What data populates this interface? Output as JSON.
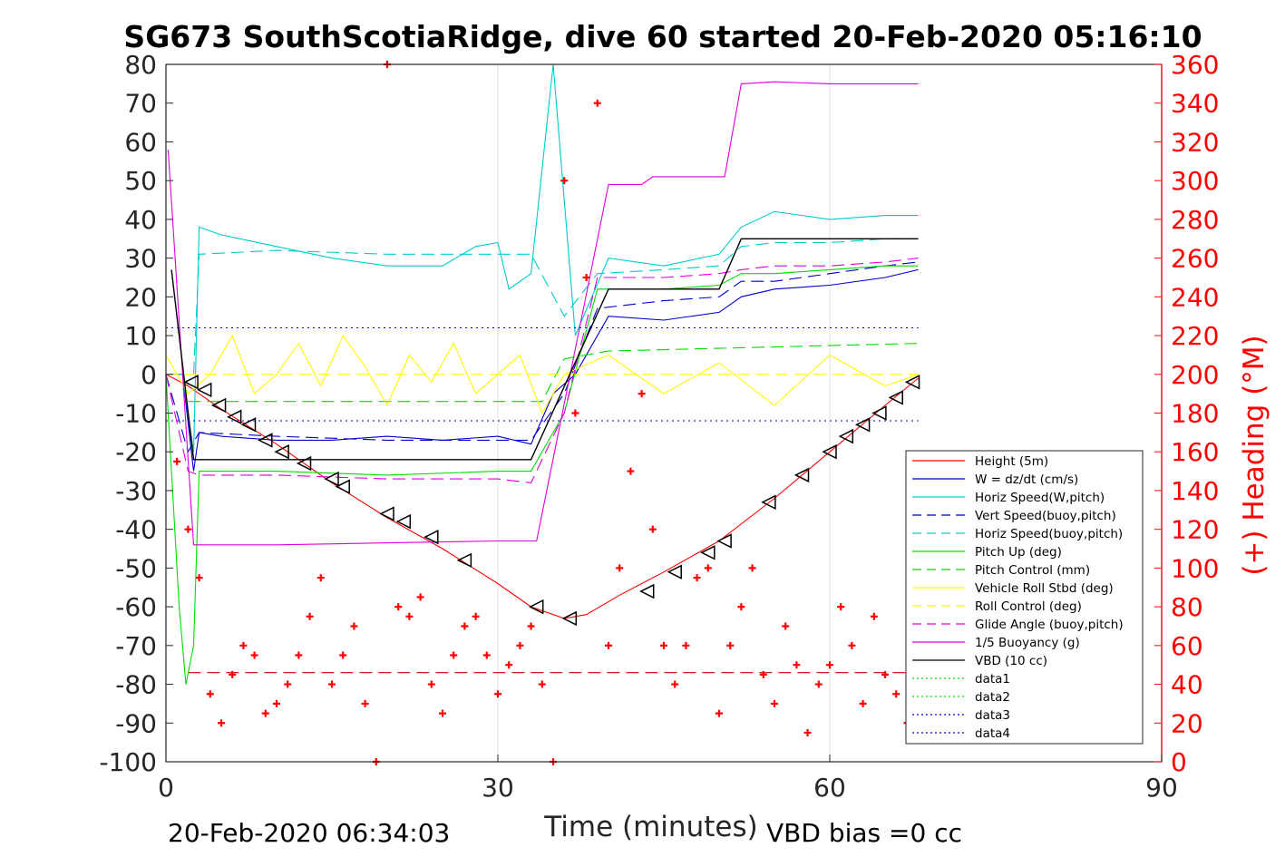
{
  "chart_data": {
    "type": "line",
    "title": "SG673 SouthScotiaRidge, dive 60 started 20-Feb-2020 05:16:10",
    "xlabel": "Time (minutes)",
    "ylabel_right": "(+) Heading (°M)",
    "xlim": [
      0,
      90
    ],
    "ylim": [
      -100,
      80
    ],
    "ylim_right": [
      0,
      360
    ],
    "xticks": [
      "0",
      "30",
      "60",
      "90"
    ],
    "yticks": [
      "80",
      "70",
      "60",
      "50",
      "40",
      "30",
      "20",
      "10",
      "0",
      "-10",
      "-20",
      "-30",
      "-40",
      "-50",
      "-60",
      "-70",
      "-80",
      "-90",
      "-100"
    ],
    "yticks_right": [
      "360",
      "340",
      "320",
      "300",
      "280",
      "260",
      "240",
      "220",
      "200",
      "180",
      "160",
      "140",
      "120",
      "100",
      "80",
      "60",
      "40",
      "20",
      "0"
    ],
    "footer_left": "20-Feb-2020 06:34:03",
    "footer_right": "VBD bias =0 cc",
    "legend_position": "lower-right",
    "grid": "vertical lines at 30 and 60",
    "series": [
      {
        "name": "Height (5m)",
        "color": "#ff0000",
        "style": "solid",
        "x": [
          0,
          2,
          5,
          10,
          15,
          20,
          25,
          30,
          33,
          36,
          38,
          41,
          45,
          50,
          55,
          60,
          65,
          68
        ],
        "y": [
          0,
          -3,
          -9,
          -18,
          -28,
          -37,
          -45,
          -54,
          -60,
          -63,
          -62,
          -57,
          -51,
          -43,
          -32,
          -20,
          -8,
          -1
        ]
      },
      {
        "name": "W = dz/dt (cm/s)",
        "color": "#0000cc",
        "style": "solid",
        "x": [
          0,
          1.5,
          2.5,
          3,
          5,
          10,
          15,
          20,
          25,
          30,
          33,
          35,
          37,
          40,
          45,
          50,
          52,
          55,
          60,
          65,
          68
        ],
        "y": [
          0,
          0,
          -25,
          -15,
          -16,
          -17,
          -17,
          -16,
          -17,
          -16,
          -18,
          -5,
          0,
          15,
          14,
          16,
          20,
          22,
          23,
          25,
          27
        ]
      },
      {
        "name": "Horiz Speed(W,pitch)",
        "color": "#00cccc",
        "style": "solid",
        "x": [
          0,
          1.5,
          2.5,
          3,
          5,
          10,
          15,
          20,
          25,
          28,
          30,
          31,
          33,
          35,
          37,
          40,
          45,
          50,
          52,
          55,
          60,
          65,
          68
        ],
        "y": [
          0,
          0,
          -20,
          38,
          36,
          33,
          30,
          28,
          28,
          33,
          34,
          22,
          26,
          80,
          10,
          30,
          28,
          31,
          38,
          42,
          40,
          41,
          41
        ]
      },
      {
        "name": "Vert Speed(buoy,pitch)",
        "color": "#0000cc",
        "style": "dashed",
        "x": [
          0,
          2,
          3,
          10,
          20,
          30,
          33,
          36,
          39,
          45,
          50,
          52,
          55,
          60,
          65,
          68
        ],
        "y": [
          0,
          -20,
          -15,
          -16,
          -17,
          -17,
          -17,
          -5,
          17,
          19,
          20,
          24,
          24,
          26,
          28,
          29
        ]
      },
      {
        "name": "Horiz Speed(buoy,pitch)",
        "color": "#00cccc",
        "style": "dashed",
        "x": [
          2.5,
          3,
          10,
          20,
          30,
          33,
          36,
          39,
          45,
          50,
          52,
          55,
          60,
          65,
          68
        ],
        "y": [
          0,
          31,
          32,
          31,
          31,
          31,
          15,
          26,
          27,
          28,
          33,
          34,
          34,
          35,
          35
        ]
      },
      {
        "name": "Pitch Up (deg)",
        "color": "#00dd00",
        "style": "solid",
        "x": [
          0,
          1.2,
          1.8,
          2.5,
          3,
          10,
          20,
          30,
          33,
          36,
          39,
          45,
          50,
          52,
          55,
          60,
          65,
          68
        ],
        "y": [
          0,
          -60,
          -80,
          -70,
          -25,
          -25,
          -26,
          -25,
          -25,
          -10,
          22,
          22,
          23,
          26,
          26,
          27,
          28,
          28
        ]
      },
      {
        "name": "Pitch Control (mm)",
        "color": "#00dd00",
        "style": "dashed",
        "x": [
          2,
          3,
          33,
          34,
          36,
          40,
          68
        ],
        "y": [
          -7,
          -7,
          -7,
          -7,
          4,
          6,
          8
        ]
      },
      {
        "name": "Vehicle Roll Stbd (deg)",
        "color": "#ffff00",
        "style": "solid",
        "x": [
          0,
          2,
          4,
          6,
          8,
          10,
          12,
          14,
          16,
          18,
          20,
          22,
          24,
          26,
          28,
          30,
          32,
          34,
          36,
          40,
          45,
          50,
          55,
          60,
          65,
          68
        ],
        "y": [
          5,
          -5,
          0,
          10,
          -5,
          0,
          8,
          -3,
          10,
          2,
          -8,
          5,
          -2,
          8,
          -5,
          0,
          5,
          -10,
          0,
          5,
          -5,
          3,
          -8,
          5,
          -3,
          0
        ]
      },
      {
        "name": "Roll Control (deg)",
        "color": "#ffff00",
        "style": "dashed",
        "x": [
          0,
          68
        ],
        "y": [
          0,
          0
        ]
      },
      {
        "name": "Glide Angle (buoy,pitch)",
        "color": "#dd00dd",
        "style": "dashed",
        "x": [
          0,
          2,
          3,
          10,
          20,
          30,
          33,
          36,
          39,
          45,
          50,
          52,
          55,
          60,
          65,
          68
        ],
        "y": [
          0,
          -25,
          -26,
          -26,
          -27,
          -27,
          -28,
          -10,
          25,
          25,
          26,
          27,
          28,
          28,
          29,
          30
        ]
      },
      {
        "name": "1/5 Buoyancy (g)",
        "color": "#dd00dd",
        "style": "solid",
        "x": [
          0.2,
          2.5,
          10,
          20,
          30,
          33.5,
          40,
          43,
          44,
          50,
          50.5,
          52,
          55,
          60,
          65,
          68
        ],
        "y": [
          58,
          -44,
          -44,
          -43.5,
          -43,
          -43,
          49,
          49,
          51,
          51,
          51,
          75,
          75.5,
          75,
          75,
          75
        ]
      },
      {
        "name": "VBD (10 cc)",
        "color": "#000000",
        "style": "solid",
        "x": [
          0.5,
          2.5,
          33,
          40,
          50,
          52,
          68
        ],
        "y": [
          27,
          -22,
          -22,
          22,
          22,
          35,
          35
        ]
      },
      {
        "name": "data1",
        "color": "#00dd00",
        "style": "dotted",
        "x": [],
        "y": []
      },
      {
        "name": "data2",
        "color": "#00dd00",
        "style": "dotted",
        "x": [],
        "y": []
      },
      {
        "name": "data3",
        "color": "#0000cc",
        "style": "dotted",
        "x": [
          0,
          68
        ],
        "y": [
          12,
          12
        ]
      },
      {
        "name": "data4",
        "color": "#0000cc",
        "style": "dotted",
        "x": [
          0,
          68
        ],
        "y": [
          -12,
          -12
        ]
      }
    ],
    "extra_lines": [
      {
        "color": "#cc0000",
        "style": "dashed",
        "x": [
          2,
          68
        ],
        "y": [
          -77,
          -77
        ]
      }
    ],
    "heading": {
      "axis": "right",
      "marker": "+",
      "color": "#ff0000",
      "x": [
        1,
        2,
        3,
        4,
        5,
        6,
        7,
        8,
        9,
        10,
        11,
        12,
        13,
        14,
        15,
        16,
        17,
        18,
        19,
        20,
        21,
        22,
        23,
        24,
        25,
        26,
        27,
        28,
        29,
        30,
        31,
        32,
        33,
        34,
        35,
        36,
        37,
        38,
        39,
        40,
        41,
        42,
        43,
        44,
        45,
        46,
        47,
        48,
        49,
        50,
        51,
        52,
        53,
        54,
        55,
        56,
        57,
        58,
        59,
        60,
        61,
        62,
        63,
        64,
        65,
        66,
        67,
        68
      ],
      "y": [
        155,
        120,
        95,
        35,
        20,
        45,
        60,
        55,
        25,
        30,
        40,
        55,
        75,
        95,
        40,
        55,
        70,
        30,
        0,
        360,
        80,
        75,
        85,
        40,
        25,
        55,
        70,
        75,
        55,
        35,
        50,
        60,
        70,
        40,
        0,
        300,
        180,
        250,
        340,
        60,
        100,
        150,
        190,
        120,
        60,
        40,
        60,
        95,
        100,
        25,
        60,
        80,
        100,
        45,
        30,
        70,
        50,
        15,
        40,
        50,
        80,
        60,
        30,
        75,
        45,
        35,
        20,
        50
      ]
    },
    "depth_markers": {
      "marker": "triangle-left",
      "color": "#000000",
      "x": [
        2.3,
        3.5,
        4.8,
        6.2,
        7.5,
        9,
        10.5,
        12.5,
        15,
        16,
        20,
        21.5,
        24,
        27,
        33.5,
        36.5,
        43.5,
        46,
        49,
        50.5,
        54.5,
        57.5,
        60,
        61.5,
        63,
        64.5,
        66,
        67.5
      ],
      "y": [
        -2,
        -4,
        -8,
        -11,
        -13,
        -17,
        -20,
        -23,
        -27,
        -29,
        -36,
        -38,
        -42,
        -48,
        -60,
        -63,
        -56,
        -51,
        -46,
        -43,
        -33,
        -26,
        -20,
        -16,
        -13,
        -10,
        -6,
        -2
      ]
    }
  }
}
